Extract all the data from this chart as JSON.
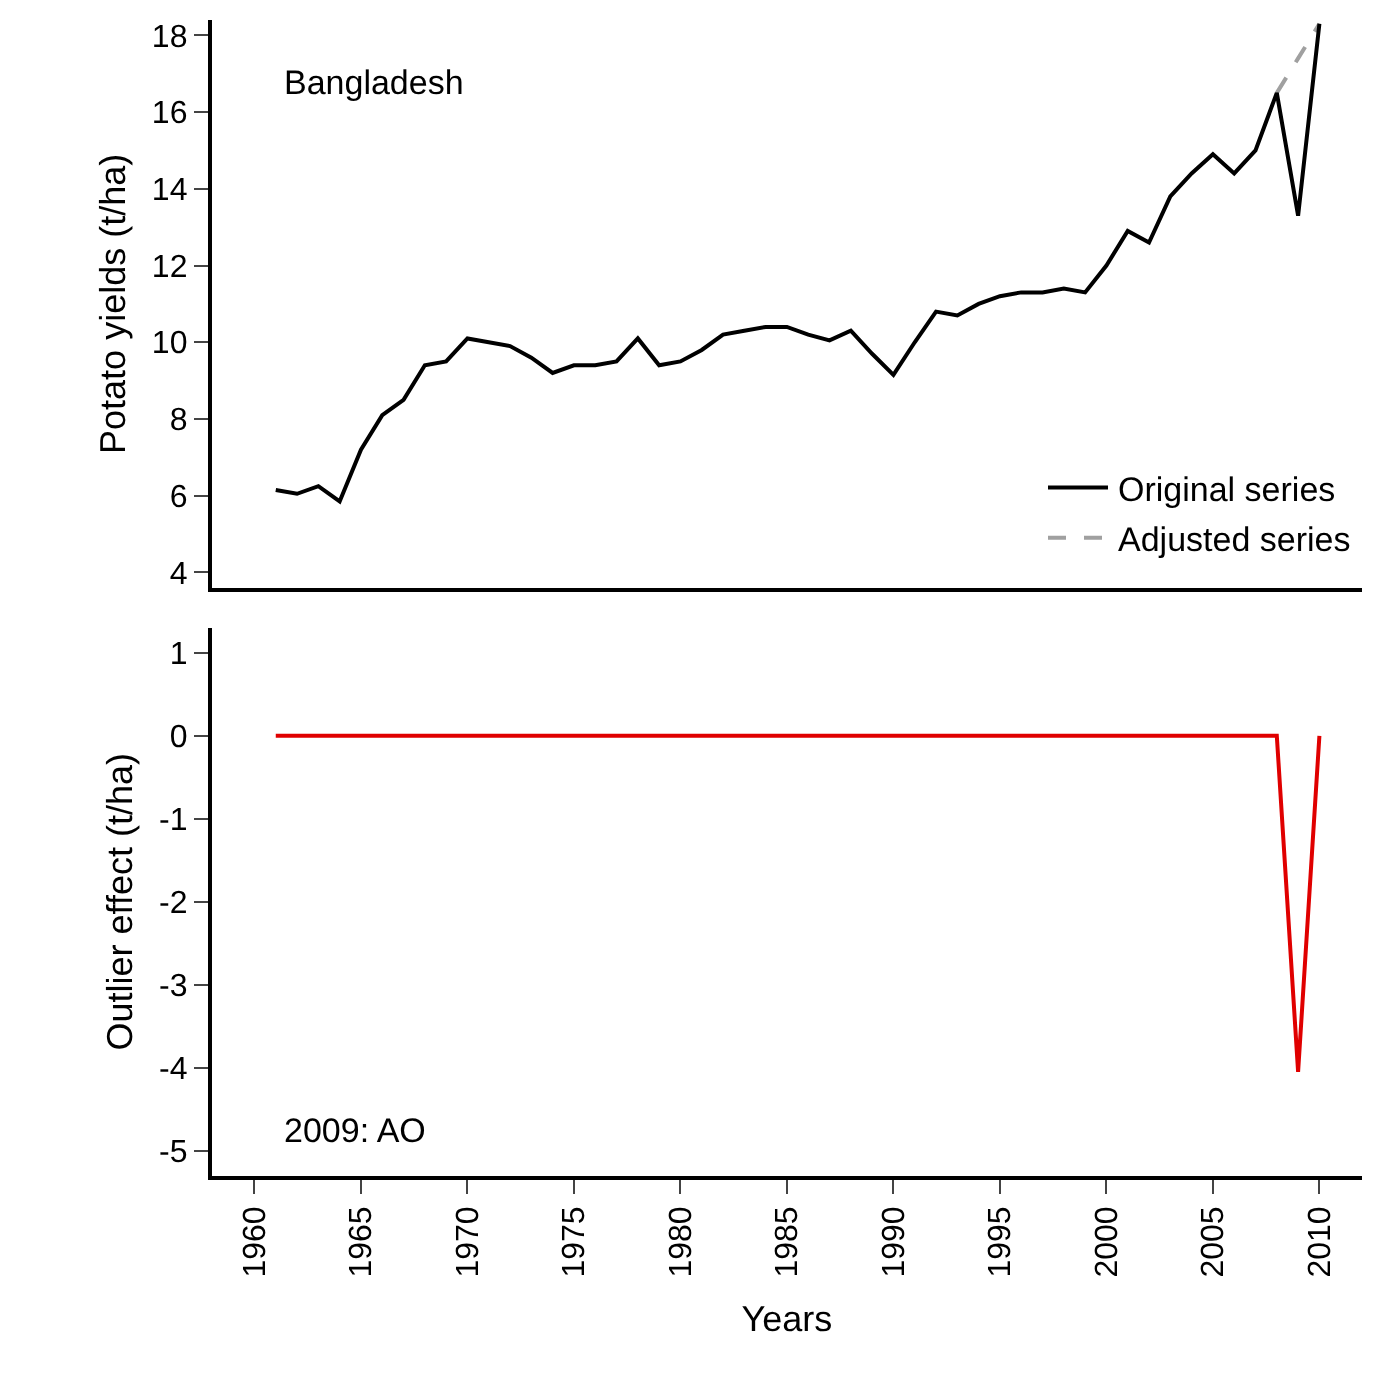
{
  "chart_data": [
    {
      "type": "line",
      "ylabel": "Potato yields (t/ha)",
      "annotations": [
        "Bangladesh"
      ],
      "xlim": [
        1958,
        2012
      ],
      "xticks": [
        1960,
        1965,
        1970,
        1975,
        1980,
        1985,
        1990,
        1995,
        2000,
        2005,
        2010
      ],
      "ylim": [
        3.6,
        18.4
      ],
      "yticks": [
        4,
        6,
        8,
        10,
        12,
        14,
        16,
        18
      ],
      "tick_labels": "y",
      "legend": "bottom right",
      "x": [
        1961,
        1962,
        1963,
        1964,
        1965,
        1966,
        1967,
        1968,
        1969,
        1970,
        1971,
        1972,
        1973,
        1974,
        1975,
        1976,
        1977,
        1978,
        1979,
        1980,
        1981,
        1982,
        1983,
        1984,
        1985,
        1986,
        1987,
        1988,
        1989,
        1990,
        1991,
        1992,
        1993,
        1994,
        1995,
        1996,
        1997,
        1998,
        1999,
        2000,
        2001,
        2002,
        2003,
        2004,
        2005,
        2006,
        2007,
        2008,
        2009,
        2010
      ],
      "series": [
        {
          "name": "Adjusted series",
          "color": "#a0a0a0",
          "line_style": "dashed",
          "values": [
            null,
            null,
            null,
            null,
            null,
            null,
            null,
            null,
            null,
            null,
            null,
            null,
            null,
            null,
            null,
            null,
            null,
            null,
            null,
            null,
            null,
            null,
            null,
            null,
            null,
            null,
            null,
            null,
            null,
            null,
            null,
            null,
            null,
            null,
            null,
            null,
            null,
            null,
            null,
            null,
            null,
            null,
            null,
            null,
            null,
            null,
            null,
            16.5,
            17.4,
            18.3
          ]
        },
        {
          "name": "Original series",
          "color": "#000000",
          "line_style": "solid",
          "values": [
            6.15,
            6.05,
            6.25,
            5.85,
            7.2,
            8.1,
            8.5,
            9.4,
            9.5,
            10.1,
            10.0,
            9.9,
            9.6,
            9.2,
            9.4,
            9.4,
            9.5,
            10.1,
            9.4,
            9.5,
            9.8,
            10.2,
            10.3,
            10.4,
            10.4,
            10.2,
            10.05,
            10.3,
            9.7,
            9.15,
            10.0,
            10.8,
            10.7,
            11.0,
            11.2,
            11.3,
            11.3,
            11.4,
            11.3,
            12.0,
            12.9,
            12.6,
            13.8,
            14.4,
            14.9,
            14.4,
            15.0,
            16.5,
            13.3,
            18.3
          ]
        }
      ]
    },
    {
      "type": "line",
      "xlabel": "Years",
      "ylabel": "Outlier effect (t/ha)",
      "annotations": [
        "2009: AO"
      ],
      "xlim": [
        1958,
        2012
      ],
      "xticks": [
        1960,
        1965,
        1970,
        1975,
        1980,
        1985,
        1990,
        1995,
        2000,
        2005,
        2010
      ],
      "ylim": [
        -5.3,
        1.3
      ],
      "yticks": [
        -5,
        -4,
        -3,
        -2,
        -1,
        0,
        1
      ],
      "x": [
        1961,
        1962,
        1963,
        1964,
        1965,
        1966,
        1967,
        1968,
        1969,
        1970,
        1971,
        1972,
        1973,
        1974,
        1975,
        1976,
        1977,
        1978,
        1979,
        1980,
        1981,
        1982,
        1983,
        1984,
        1985,
        1986,
        1987,
        1988,
        1989,
        1990,
        1991,
        1992,
        1993,
        1994,
        1995,
        1996,
        1997,
        1998,
        1999,
        2000,
        2001,
        2002,
        2003,
        2004,
        2005,
        2006,
        2007,
        2008,
        2009,
        2010
      ],
      "series": [
        {
          "color": "#e00000",
          "values": [
            0,
            0,
            0,
            0,
            0,
            0,
            0,
            0,
            0,
            0,
            0,
            0,
            0,
            0,
            0,
            0,
            0,
            0,
            0,
            0,
            0,
            0,
            0,
            0,
            0,
            0,
            0,
            0,
            0,
            0,
            0,
            0,
            0,
            0,
            0,
            0,
            0,
            0,
            0,
            0,
            0,
            0,
            0,
            0,
            0,
            0,
            0,
            0,
            -4.05,
            0
          ]
        }
      ]
    }
  ]
}
